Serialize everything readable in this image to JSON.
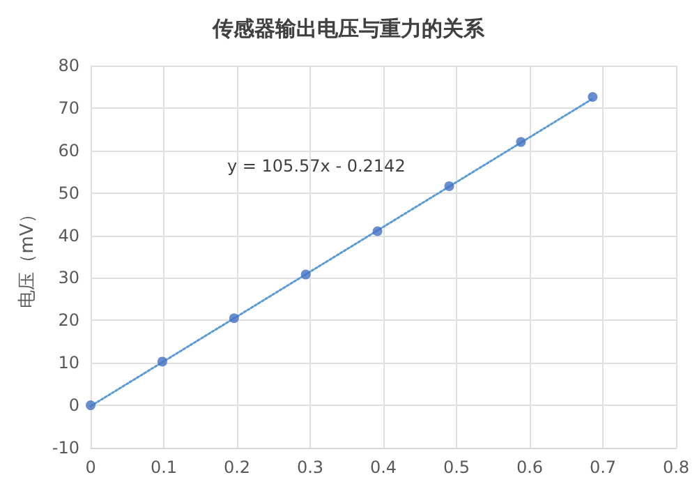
{
  "chart_data": {
    "type": "scatter",
    "title": "传感器输出电压与重力的关系",
    "ylabel": "电压（mV）",
    "x": [
      0,
      0.098,
      0.196,
      0.294,
      0.392,
      0.49,
      0.588,
      0.686
    ],
    "series": [
      {
        "color": "#4472c4",
        "values": [
          0,
          10.3,
          20.5,
          30.8,
          41,
          51.6,
          62,
          72.6
        ]
      },
      {
        "type": "line",
        "color": "#5b9bd5",
        "x": [
          0,
          0.686
        ],
        "values": [
          -0.2,
          72.2
        ],
        "line_style": "dotted",
        "marker": "none"
      }
    ],
    "annotations": [
      "y = 105.57x - 0.2142"
    ],
    "xlim": [
      0,
      0.8
    ],
    "xticks": [
      0,
      0.1,
      0.2,
      0.3,
      0.4,
      0.5,
      0.6,
      0.7,
      0.8
    ],
    "ylim": [
      -10,
      80
    ],
    "yticks": [
      -10,
      0,
      10,
      20,
      30,
      40,
      50,
      60,
      70,
      80
    ],
    "grid": true,
    "marker": "circle"
  }
}
